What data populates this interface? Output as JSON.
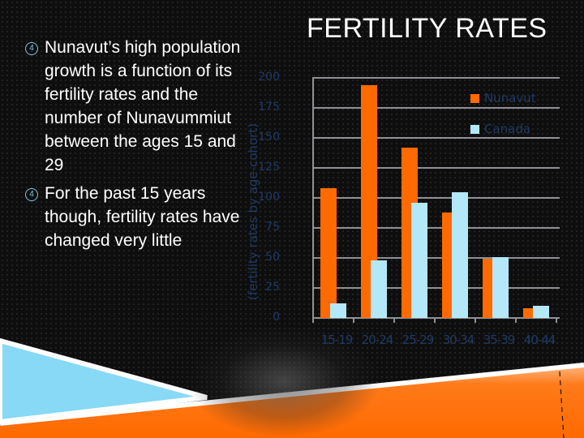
{
  "slide": {
    "title": "FERTILITY RATES",
    "bullet_marker_icon": "circled-4-icon",
    "bullets": [
      "Nunavut’s high population growth is a function of its fertility rates and the number of Nunavummiut between the ages 15 and 29",
      "For the past 15 years though, fertility rates have changed very little"
    ]
  },
  "colors": {
    "background": "#0e0e0e",
    "nunavut": "#ff6a00",
    "canada": "#b3e8f8",
    "axis_text": "#1f3b66",
    "grid": "#8f9196",
    "deco_blue": "#87d9f5",
    "deco_orange": "#ff6a00"
  },
  "chart_data": {
    "type": "bar",
    "title": "FERTILITY RATES",
    "xlabel": "",
    "ylabel": "(fertility rates by age-cohort)",
    "categories": [
      "15-19",
      "20-24",
      "25-29",
      "30-34",
      "35-39",
      "40-44"
    ],
    "series": [
      {
        "name": "Nunavut",
        "color": "#ff6a00",
        "values": [
          108,
          194,
          142,
          88,
          49,
          8
        ]
      },
      {
        "name": "Canada",
        "color": "#b3e8f8",
        "values": [
          12,
          48,
          96,
          105,
          51,
          10
        ]
      }
    ],
    "ylim": [
      0,
      200
    ],
    "yticks": [
      "0",
      "25",
      "50",
      "75",
      "100",
      "125",
      "150",
      "175",
      "200"
    ],
    "grid": true,
    "legend_position": "top-right"
  }
}
